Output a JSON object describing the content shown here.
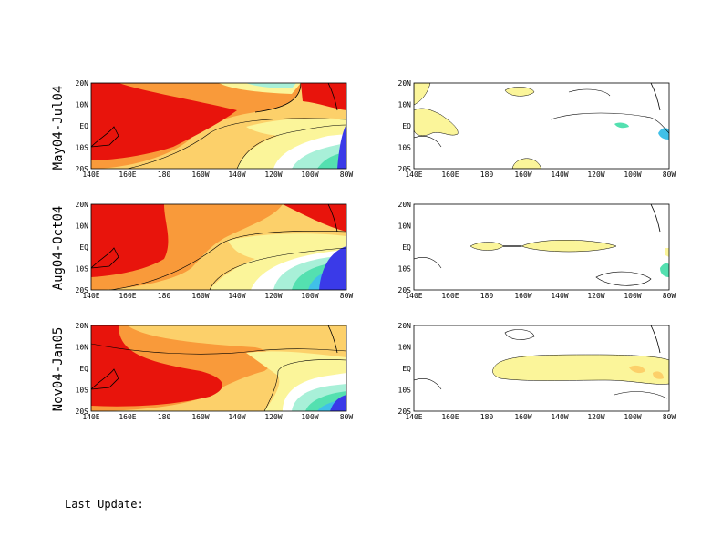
{
  "rows": [
    {
      "period": "May04-Jul04"
    },
    {
      "period": "Aug04-Oct04"
    },
    {
      "period": "Nov04-Jan05"
    }
  ],
  "axes": {
    "x_ticks": [
      "140E",
      "160E",
      "180",
      "160W",
      "140W",
      "120W",
      "100W",
      "80W"
    ],
    "y_ticks": [
      "20N",
      "10N",
      "EQ",
      "10S",
      "20S"
    ]
  },
  "footer": {
    "last_update_label": "Last Update:"
  },
  "colors": {
    "red": "#e8140c",
    "orange_dark": "#f46c1c",
    "orange": "#f99a3a",
    "light_orange": "#fcd06a",
    "yellow": "#fbf59a",
    "white": "#ffffff",
    "teal_light": "#a8f0d8",
    "teal": "#54e0b0",
    "cyan": "#40c0e8",
    "blue": "#3a3ae8",
    "land_outline": "#000000"
  }
}
